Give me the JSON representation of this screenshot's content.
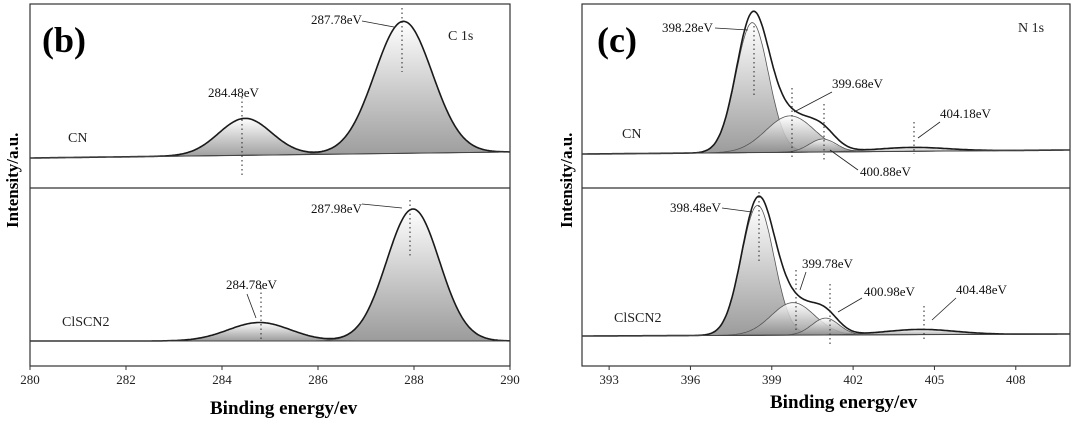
{
  "chart_data": [
    {
      "type": "line",
      "panel": "(b)",
      "core_level": "C 1s",
      "xlabel": "Binding energy/ev",
      "ylabel": "Intensity/a.u.",
      "xlim": [
        280,
        290
      ],
      "xticks": [
        "280",
        "282",
        "284",
        "286",
        "288",
        "290"
      ],
      "grid": false,
      "samples": [
        {
          "name": "CN",
          "peaks": [
            {
              "label": "284.48eV",
              "center": 284.48,
              "height": 0.28,
              "width": 0.55
            },
            {
              "label": "287.78eV",
              "center": 287.78,
              "height": 1.0,
              "width": 0.6
            }
          ]
        },
        {
          "name": "ClSCN2",
          "peaks": [
            {
              "label": "284.78eV",
              "center": 284.78,
              "height": 0.14,
              "width": 0.65
            },
            {
              "label": "287.98eV",
              "center": 287.98,
              "height": 1.0,
              "width": 0.55
            }
          ]
        }
      ]
    },
    {
      "type": "line",
      "panel": "(c)",
      "core_level": "N 1s",
      "xlabel": "Binding energy/ev",
      "ylabel": "Intensity/a.u.",
      "xlim": [
        392,
        410
      ],
      "xticks": [
        "393",
        "396",
        "399",
        "402",
        "405",
        "408"
      ],
      "grid": false,
      "samples": [
        {
          "name": "CN",
          "peaks": [
            {
              "label": "398.28eV",
              "center": 398.28,
              "height": 1.0,
              "width": 0.6
            },
            {
              "label": "399.68eV",
              "center": 399.68,
              "height": 0.28,
              "width": 0.9
            },
            {
              "label": "400.88eV",
              "center": 400.88,
              "height": 0.1,
              "width": 0.5
            },
            {
              "label": "404.18eV",
              "center": 404.18,
              "height": 0.03,
              "width": 1.3
            }
          ]
        },
        {
          "name": "ClSCN2",
          "peaks": [
            {
              "label": "398.48eV",
              "center": 398.48,
              "height": 1.0,
              "width": 0.6
            },
            {
              "label": "399.78eV",
              "center": 399.78,
              "height": 0.25,
              "width": 0.8
            },
            {
              "label": "400.98eV",
              "center": 400.98,
              "height": 0.13,
              "width": 0.5
            },
            {
              "label": "404.48eV",
              "center": 404.48,
              "height": 0.04,
              "width": 1.3
            }
          ]
        }
      ]
    }
  ]
}
